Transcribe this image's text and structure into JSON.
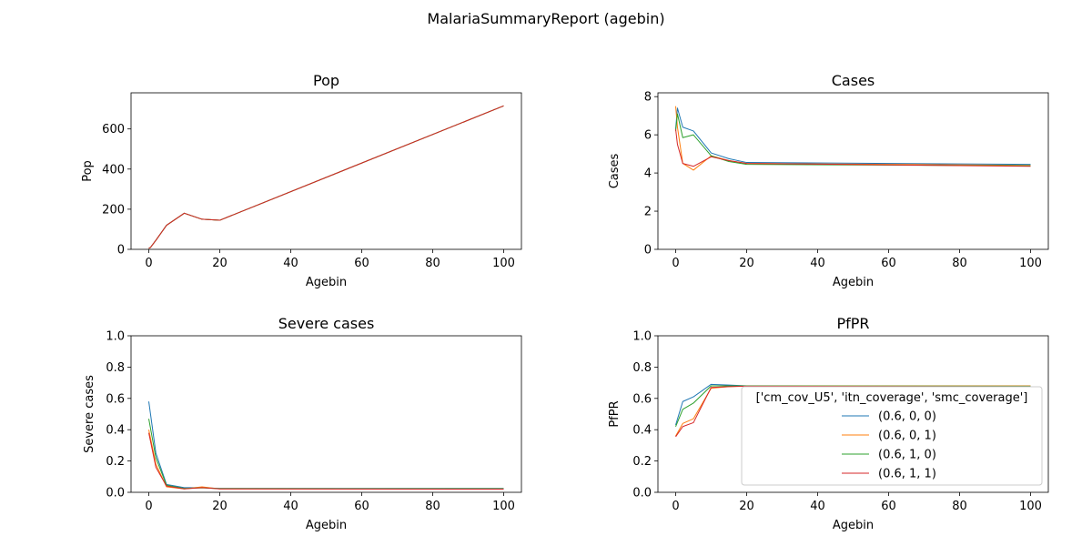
{
  "figure": {
    "suptitle": "MalariaSummaryReport (agebin)"
  },
  "legend": {
    "title": "['cm_cov_U5', 'itn_coverage', 'smc_coverage']",
    "location": "center-right of PfPR panel"
  },
  "series_meta": [
    {
      "name": "(0.6, 0, 0)",
      "color": "#1f77b4"
    },
    {
      "name": "(0.6, 0, 1)",
      "color": "#ff7f0e"
    },
    {
      "name": "(0.6, 1, 0)",
      "color": "#2ca02c"
    },
    {
      "name": "(0.6, 1, 1)",
      "color": "#d62728"
    }
  ],
  "chart_data": [
    {
      "type": "line",
      "title": "Pop",
      "xlabel": "Agebin",
      "ylabel": "Pop",
      "xlim": [
        -5,
        105
      ],
      "ylim": [
        0,
        780
      ],
      "xticks": [
        0,
        20,
        40,
        60,
        80,
        100
      ],
      "yticks": [
        0,
        200,
        400,
        600
      ],
      "x": [
        0,
        0.5,
        2,
        5,
        10,
        15,
        20,
        100
      ],
      "series": [
        {
          "name": "(0.6, 0, 0)",
          "values": [
            5,
            10,
            45,
            120,
            180,
            150,
            145,
            715
          ]
        },
        {
          "name": "(0.6, 0, 1)",
          "values": [
            5,
            10,
            45,
            120,
            180,
            150,
            145,
            715
          ]
        },
        {
          "name": "(0.6, 1, 0)",
          "values": [
            5,
            10,
            45,
            120,
            180,
            150,
            145,
            715
          ]
        },
        {
          "name": "(0.6, 1, 1)",
          "values": [
            5,
            10,
            45,
            120,
            180,
            150,
            145,
            715
          ]
        }
      ]
    },
    {
      "type": "line",
      "title": "Cases",
      "xlabel": "Agebin",
      "ylabel": "Cases",
      "xlim": [
        -5,
        105
      ],
      "ylim": [
        0,
        8.2
      ],
      "xticks": [
        0,
        20,
        40,
        60,
        80,
        100
      ],
      "yticks": [
        0,
        2,
        4,
        6,
        8
      ],
      "x": [
        0,
        0.5,
        2,
        5,
        10,
        15,
        20,
        100
      ],
      "series": [
        {
          "name": "(0.6, 0, 0)",
          "values": [
            6.3,
            7.4,
            6.4,
            6.2,
            5.05,
            4.75,
            4.55,
            4.45
          ]
        },
        {
          "name": "(0.6, 0, 1)",
          "values": [
            7.5,
            6.4,
            4.5,
            4.15,
            4.9,
            4.65,
            4.5,
            4.4
          ]
        },
        {
          "name": "(0.6, 1, 0)",
          "values": [
            6.2,
            7.1,
            5.85,
            6.0,
            4.9,
            4.6,
            4.45,
            4.38
          ]
        },
        {
          "name": "(0.6, 1, 1)",
          "values": [
            6.3,
            5.5,
            4.5,
            4.35,
            4.85,
            4.65,
            4.5,
            4.35
          ]
        }
      ]
    },
    {
      "type": "line",
      "title": "Severe cases",
      "xlabel": "Agebin",
      "ylabel": "Severe cases",
      "xlim": [
        -5,
        105
      ],
      "ylim": [
        0,
        1.0
      ],
      "xticks": [
        0,
        20,
        40,
        60,
        80,
        100
      ],
      "yticks": [
        0.0,
        0.2,
        0.4,
        0.6,
        0.8,
        1.0
      ],
      "x": [
        0,
        2,
        5,
        10,
        15,
        20,
        100
      ],
      "series": [
        {
          "name": "(0.6, 0, 0)",
          "values": [
            0.58,
            0.25,
            0.05,
            0.03,
            0.03,
            0.025,
            0.025
          ]
        },
        {
          "name": "(0.6, 0, 1)",
          "values": [
            0.4,
            0.18,
            0.035,
            0.022,
            0.035,
            0.022,
            0.022
          ]
        },
        {
          "name": "(0.6, 1, 0)",
          "values": [
            0.47,
            0.22,
            0.045,
            0.025,
            0.028,
            0.024,
            0.023
          ]
        },
        {
          "name": "(0.6, 1, 1)",
          "values": [
            0.38,
            0.16,
            0.04,
            0.022,
            0.03,
            0.022,
            0.02
          ]
        }
      ]
    },
    {
      "type": "line",
      "title": "PfPR",
      "xlabel": "Agebin",
      "ylabel": "PfPR",
      "xlim": [
        -5,
        105
      ],
      "ylim": [
        0,
        1.0
      ],
      "xticks": [
        0,
        20,
        40,
        60,
        80,
        100
      ],
      "yticks": [
        0.0,
        0.2,
        0.4,
        0.6,
        0.8,
        1.0
      ],
      "x": [
        0,
        2,
        5,
        10,
        15,
        20,
        100
      ],
      "series": [
        {
          "name": "(0.6, 0, 0)",
          "values": [
            0.43,
            0.58,
            0.61,
            0.69,
            0.685,
            0.68,
            0.68
          ]
        },
        {
          "name": "(0.6, 0, 1)",
          "values": [
            0.36,
            0.44,
            0.47,
            0.665,
            0.675,
            0.68,
            0.68
          ]
        },
        {
          "name": "(0.6, 1, 0)",
          "values": [
            0.42,
            0.53,
            0.57,
            0.68,
            0.68,
            0.68,
            0.678
          ]
        },
        {
          "name": "(0.6, 1, 1)",
          "values": [
            0.355,
            0.42,
            0.445,
            0.67,
            0.675,
            0.678,
            0.675
          ]
        }
      ]
    }
  ]
}
